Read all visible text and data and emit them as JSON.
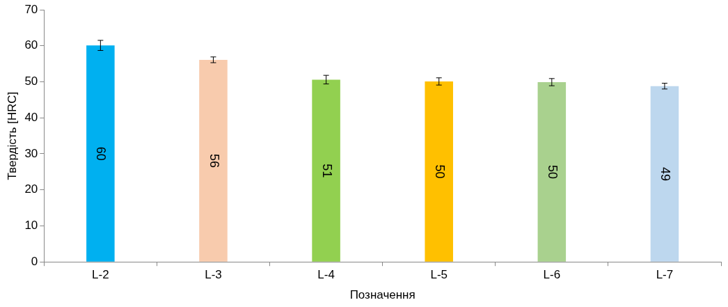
{
  "chart_data": {
    "type": "bar",
    "xlabel": "Позначення",
    "ylabel": "Твердість [HRC]",
    "categories": [
      "L-2",
      "L-3",
      "L-4",
      "L-5",
      "L-6",
      "L-7"
    ],
    "values": [
      60.1,
      56.1,
      50.6,
      50.1,
      49.9,
      48.8
    ],
    "colors": [
      "#00b0f0",
      "#f8cbad",
      "#92d050",
      "#ffc000",
      "#a9d18e",
      "#bdd7ee"
    ],
    "errors": [
      1.4,
      0.8,
      1.2,
      1.0,
      1.0,
      0.8
    ],
    "value_labels": [
      "60",
      "56",
      "51",
      "50",
      "50",
      "49"
    ],
    "ylim": [
      0,
      70
    ],
    "yticks": [
      0,
      10,
      20,
      30,
      40,
      50,
      60,
      70
    ],
    "grid": false,
    "legend": false
  }
}
